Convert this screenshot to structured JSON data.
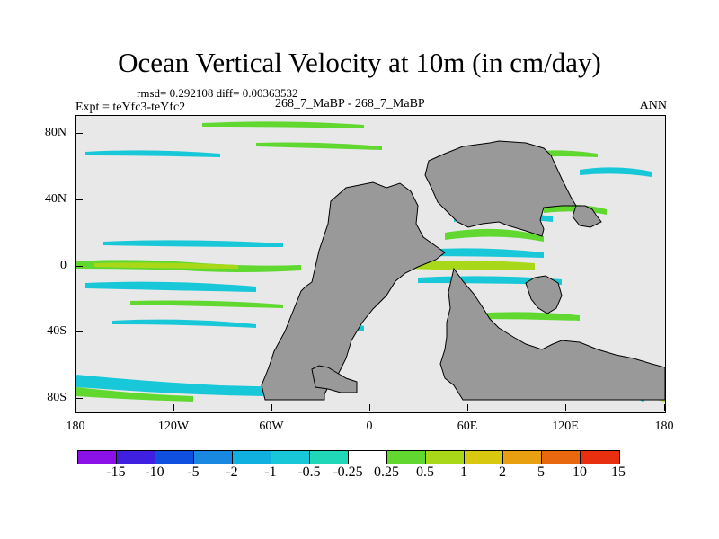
{
  "title": "Ocean Vertical Velocity at 10m (in cm/day)",
  "stats_line": "rmsd= 0.292108 diff= 0.00363532",
  "experiment": "Expt = teYfc3-teYfc2",
  "cases": "268_7_MaBP - 268_7_MaBP",
  "season": "ANN",
  "y_axis_labels": [
    "80N",
    "40N",
    "0",
    "40S",
    "80S"
  ],
  "x_axis_labels": [
    "180",
    "120W",
    "60W",
    "0",
    "60E",
    "120E",
    "180"
  ],
  "colorbar": {
    "labels": [
      "-15",
      "-10",
      "-5",
      "-2",
      "-1",
      "-0.5",
      "-0.25",
      "0.25",
      "0.5",
      "1",
      "2",
      "5",
      "10",
      "15"
    ],
    "colors": [
      "#8c10e8",
      "#4020e0",
      "#1050e0",
      "#1888e0",
      "#10b0e0",
      "#18c8d8",
      "#20d8b8",
      "#ffffff",
      "#60d830",
      "#a8d818",
      "#d8c810",
      "#e8a010",
      "#e86810",
      "#e83010"
    ]
  },
  "land_color": "#999999",
  "ocean_background_color": "#e8e8e8"
}
